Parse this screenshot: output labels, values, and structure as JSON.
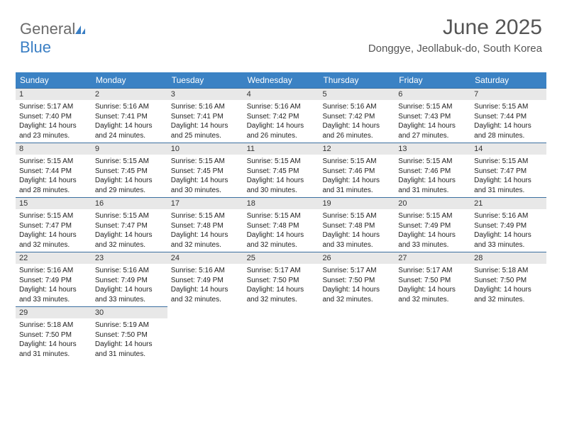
{
  "logo": {
    "text1": "General",
    "text2": "Blue"
  },
  "header": {
    "title": "June 2025",
    "subtitle": "Donggye, Jeollabuk-do, South Korea"
  },
  "colors": {
    "header_bg": "#3b82c4",
    "header_text": "#ffffff",
    "daynum_bg": "#e8e8e8",
    "week_border": "#3b6fa0",
    "title_color": "#555555",
    "body_text": "#222222"
  },
  "day_names": [
    "Sunday",
    "Monday",
    "Tuesday",
    "Wednesday",
    "Thursday",
    "Friday",
    "Saturday"
  ],
  "weeks": [
    [
      {
        "n": "1",
        "sr": "5:17 AM",
        "ss": "7:40 PM",
        "dl": "14 hours and 23 minutes."
      },
      {
        "n": "2",
        "sr": "5:16 AM",
        "ss": "7:41 PM",
        "dl": "14 hours and 24 minutes."
      },
      {
        "n": "3",
        "sr": "5:16 AM",
        "ss": "7:41 PM",
        "dl": "14 hours and 25 minutes."
      },
      {
        "n": "4",
        "sr": "5:16 AM",
        "ss": "7:42 PM",
        "dl": "14 hours and 26 minutes."
      },
      {
        "n": "5",
        "sr": "5:16 AM",
        "ss": "7:42 PM",
        "dl": "14 hours and 26 minutes."
      },
      {
        "n": "6",
        "sr": "5:15 AM",
        "ss": "7:43 PM",
        "dl": "14 hours and 27 minutes."
      },
      {
        "n": "7",
        "sr": "5:15 AM",
        "ss": "7:44 PM",
        "dl": "14 hours and 28 minutes."
      }
    ],
    [
      {
        "n": "8",
        "sr": "5:15 AM",
        "ss": "7:44 PM",
        "dl": "14 hours and 28 minutes."
      },
      {
        "n": "9",
        "sr": "5:15 AM",
        "ss": "7:45 PM",
        "dl": "14 hours and 29 minutes."
      },
      {
        "n": "10",
        "sr": "5:15 AM",
        "ss": "7:45 PM",
        "dl": "14 hours and 30 minutes."
      },
      {
        "n": "11",
        "sr": "5:15 AM",
        "ss": "7:45 PM",
        "dl": "14 hours and 30 minutes."
      },
      {
        "n": "12",
        "sr": "5:15 AM",
        "ss": "7:46 PM",
        "dl": "14 hours and 31 minutes."
      },
      {
        "n": "13",
        "sr": "5:15 AM",
        "ss": "7:46 PM",
        "dl": "14 hours and 31 minutes."
      },
      {
        "n": "14",
        "sr": "5:15 AM",
        "ss": "7:47 PM",
        "dl": "14 hours and 31 minutes."
      }
    ],
    [
      {
        "n": "15",
        "sr": "5:15 AM",
        "ss": "7:47 PM",
        "dl": "14 hours and 32 minutes."
      },
      {
        "n": "16",
        "sr": "5:15 AM",
        "ss": "7:47 PM",
        "dl": "14 hours and 32 minutes."
      },
      {
        "n": "17",
        "sr": "5:15 AM",
        "ss": "7:48 PM",
        "dl": "14 hours and 32 minutes."
      },
      {
        "n": "18",
        "sr": "5:15 AM",
        "ss": "7:48 PM",
        "dl": "14 hours and 32 minutes."
      },
      {
        "n": "19",
        "sr": "5:15 AM",
        "ss": "7:48 PM",
        "dl": "14 hours and 33 minutes."
      },
      {
        "n": "20",
        "sr": "5:15 AM",
        "ss": "7:49 PM",
        "dl": "14 hours and 33 minutes."
      },
      {
        "n": "21",
        "sr": "5:16 AM",
        "ss": "7:49 PM",
        "dl": "14 hours and 33 minutes."
      }
    ],
    [
      {
        "n": "22",
        "sr": "5:16 AM",
        "ss": "7:49 PM",
        "dl": "14 hours and 33 minutes."
      },
      {
        "n": "23",
        "sr": "5:16 AM",
        "ss": "7:49 PM",
        "dl": "14 hours and 33 minutes."
      },
      {
        "n": "24",
        "sr": "5:16 AM",
        "ss": "7:49 PM",
        "dl": "14 hours and 32 minutes."
      },
      {
        "n": "25",
        "sr": "5:17 AM",
        "ss": "7:50 PM",
        "dl": "14 hours and 32 minutes."
      },
      {
        "n": "26",
        "sr": "5:17 AM",
        "ss": "7:50 PM",
        "dl": "14 hours and 32 minutes."
      },
      {
        "n": "27",
        "sr": "5:17 AM",
        "ss": "7:50 PM",
        "dl": "14 hours and 32 minutes."
      },
      {
        "n": "28",
        "sr": "5:18 AM",
        "ss": "7:50 PM",
        "dl": "14 hours and 32 minutes."
      }
    ],
    [
      {
        "n": "29",
        "sr": "5:18 AM",
        "ss": "7:50 PM",
        "dl": "14 hours and 31 minutes."
      },
      {
        "n": "30",
        "sr": "5:19 AM",
        "ss": "7:50 PM",
        "dl": "14 hours and 31 minutes."
      },
      null,
      null,
      null,
      null,
      null
    ]
  ],
  "labels": {
    "sunrise": "Sunrise:",
    "sunset": "Sunset:",
    "daylight": "Daylight:"
  }
}
